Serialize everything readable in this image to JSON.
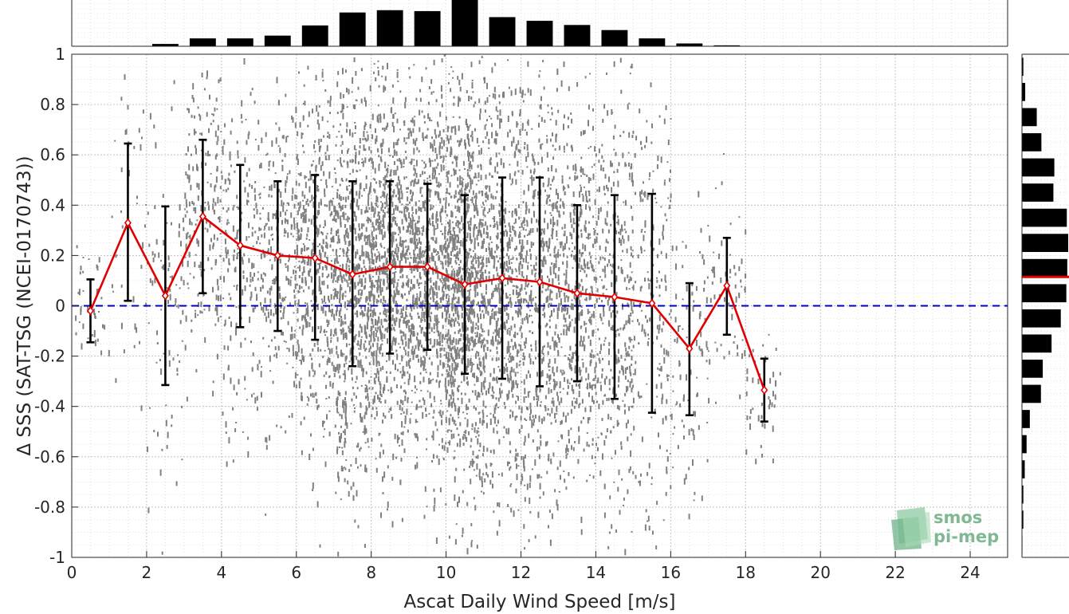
{
  "chart_data": {
    "type": "scatter",
    "xlabel": "Ascat Daily Wind Speed [m/s]",
    "ylabel": "Δ SSS (SAT-TSG (NCEI-0170743))",
    "xlim": [
      0,
      25
    ],
    "ylim": [
      -1,
      1
    ],
    "xticks": [
      0,
      2,
      4,
      6,
      8,
      10,
      12,
      14,
      16,
      18,
      20,
      22,
      24
    ],
    "yticks": [
      -1,
      -0.8,
      -0.6,
      -0.4,
      -0.2,
      0,
      0.2,
      0.4,
      0.6,
      0.8,
      1
    ],
    "grid": true,
    "colors": {
      "scatter": "#808080",
      "mean_line": "#e00000",
      "error_bars": "#000000",
      "zero_line": "#0000c0",
      "histograms": "#000000",
      "median_marker": "#e00000"
    },
    "scatter_description_series": "gray point cloud",
    "bin_statistics": {
      "x": [
        0.5,
        1.5,
        2.5,
        3.5,
        4.5,
        5.5,
        6.5,
        7.5,
        8.5,
        9.5,
        10.5,
        11.5,
        12.5,
        13.5,
        14.5,
        15.5,
        16.5,
        17.5,
        18.5
      ],
      "mean": [
        -0.02,
        0.33,
        0.04,
        0.355,
        0.24,
        0.2,
        0.19,
        0.125,
        0.155,
        0.155,
        0.085,
        0.11,
        0.095,
        0.05,
        0.035,
        0.01,
        -0.17,
        0.08,
        -0.335
      ],
      "lower": [
        -0.145,
        0.02,
        -0.315,
        0.05,
        -0.085,
        -0.1,
        -0.135,
        -0.24,
        -0.19,
        -0.175,
        -0.27,
        -0.29,
        -0.32,
        -0.3,
        -0.37,
        -0.425,
        -0.435,
        -0.115,
        -0.46
      ],
      "upper": [
        0.105,
        0.645,
        0.395,
        0.66,
        0.56,
        0.495,
        0.52,
        0.495,
        0.495,
        0.485,
        0.44,
        0.51,
        0.51,
        0.4,
        0.44,
        0.445,
        0.09,
        0.27,
        -0.21
      ]
    },
    "zero_reference": 0,
    "x_histogram": {
      "bin_centers": [
        0.5,
        1.5,
        2.5,
        3.5,
        4.5,
        5.5,
        6.5,
        7.5,
        8.5,
        9.5,
        10.5,
        11.5,
        12.5,
        13.5,
        14.5,
        15.5,
        16.5,
        17.5,
        18.5
      ],
      "relative_counts": [
        0,
        0,
        0.05,
        0.17,
        0.17,
        0.23,
        0.45,
        0.73,
        0.78,
        0.76,
        1.0,
        0.63,
        0.55,
        0.46,
        0.35,
        0.17,
        0.06,
        0.02,
        0
      ]
    },
    "y_histogram": {
      "bin_edges": [
        -1,
        -0.9,
        -0.8,
        -0.7,
        -0.6,
        -0.5,
        -0.4,
        -0.3,
        -0.2,
        -0.1,
        0,
        0.1,
        0.2,
        0.3,
        0.4,
        0.5,
        0.6,
        0.7,
        0.8,
        0.9,
        1
      ],
      "relative_counts": [
        0.01,
        0.03,
        0.03,
        0.06,
        0.1,
        0.17,
        0.41,
        0.45,
        0.64,
        0.84,
        0.96,
        0.98,
        1.0,
        0.97,
        0.68,
        0.7,
        0.42,
        0.32,
        0.07,
        0.03
      ]
    },
    "y_median": 0.115
  },
  "logo": {
    "line1": "smos",
    "line2": "pi-mep"
  }
}
